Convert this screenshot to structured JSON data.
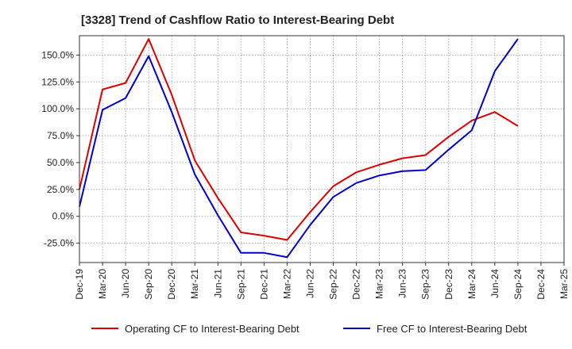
{
  "chart_data": {
    "type": "line",
    "title": "[3328]  Trend of Cashflow Ratio to Interest-Bearing Debt",
    "xlabel": "",
    "ylabel": "",
    "categories": [
      "Dec-19",
      "Mar-20",
      "Jun-20",
      "Sep-20",
      "Dec-20",
      "Mar-21",
      "Jun-21",
      "Sep-21",
      "Dec-21",
      "Mar-22",
      "Jun-22",
      "Sep-22",
      "Dec-22",
      "Mar-23",
      "Jun-23",
      "Sep-23",
      "Dec-23",
      "Mar-24",
      "Jun-24",
      "Sep-24",
      "Dec-24",
      "Mar-25"
    ],
    "ylim": [
      -43,
      168
    ],
    "yticks": [
      -25,
      0,
      25,
      50,
      75,
      100,
      125,
      150
    ],
    "ytick_labels": [
      "-25.0%",
      "0.0%",
      "25.0%",
      "50.0%",
      "75.0%",
      "100.0%",
      "125.0%",
      "150.0%"
    ],
    "grid": true,
    "legend_position": "bottom",
    "series": [
      {
        "name": "Operating CF to Interest-Bearing Debt",
        "color": "#dd0000",
        "values": [
          25,
          118,
          124,
          165,
          113,
          52,
          17,
          -15,
          -18,
          -22,
          4,
          28,
          41,
          48,
          54,
          57,
          74,
          89,
          97,
          84,
          null,
          null
        ]
      },
      {
        "name": "Free CF to Interest-Bearing Debt",
        "color": "#0000cc",
        "values": [
          9,
          99,
          110,
          149,
          97,
          39,
          1,
          -34,
          -34,
          -38,
          -8,
          18,
          31,
          38,
          42,
          43,
          62,
          80,
          135,
          165,
          null,
          null
        ]
      }
    ]
  }
}
